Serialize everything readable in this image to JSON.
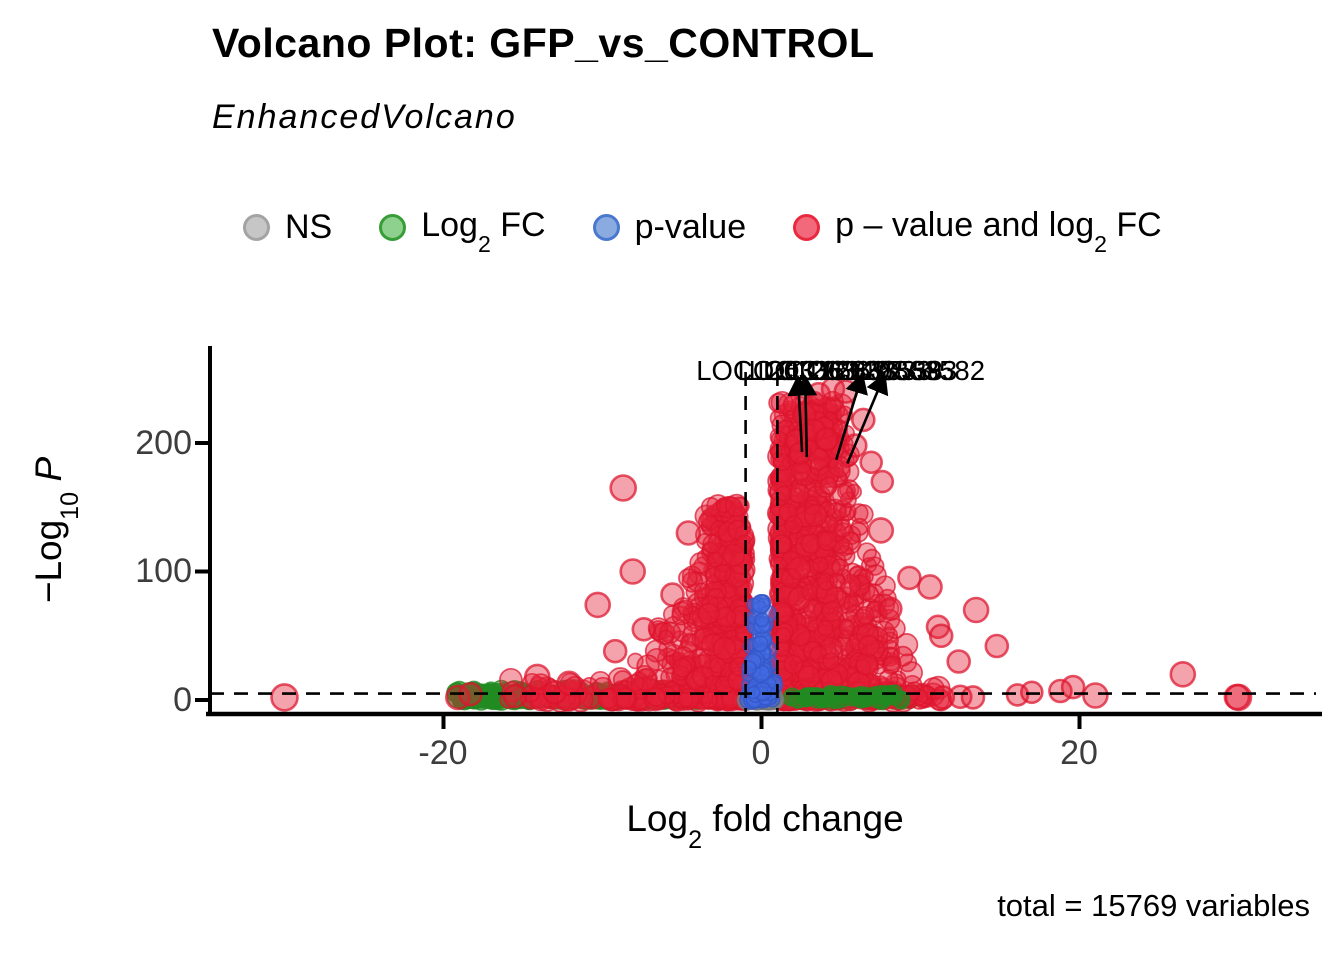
{
  "title": "Volcano Plot: GFP_vs_CONTROL",
  "subtitle": "EnhancedVolcano",
  "caption": "total = 15769 variables",
  "legend": {
    "ns": {
      "label": "NS",
      "fill": "#c6c6c6",
      "stroke": "#a3a3a3"
    },
    "fc": {
      "pre": "Log",
      "sub": "2",
      "post": " FC",
      "fill": "#8ed08e",
      "stroke": "#379d37"
    },
    "p": {
      "label": "p-value",
      "fill": "#8aabdf",
      "stroke": "#4a77cf"
    },
    "both": {
      "pre": "p – value and log",
      "sub": "2",
      "post": " FC",
      "fill": "#f2697c",
      "stroke": "#e8293f"
    }
  },
  "axes": {
    "x": {
      "title_pre": "Log",
      "title_sub": "2",
      "title_post": " fold change",
      "ticks": [
        -20,
        0,
        20
      ],
      "tick_labels": [
        "-20",
        "0",
        "20"
      ],
      "range": [
        -35,
        35
      ]
    },
    "y": {
      "title_pre": "−Log",
      "title_sub": "10",
      "title_post_italic": "P",
      "ticks": [
        0,
        100,
        200
      ],
      "tick_labels": [
        "0",
        "100",
        "200"
      ],
      "range": [
        0,
        274
      ]
    }
  },
  "chart_data": {
    "type": "scatter",
    "title": "Volcano Plot: GFP_vs_CONTROL",
    "subtitle": "EnhancedVolcano",
    "caption": "total = 15769 variables",
    "xlabel": "Log2 fold change",
    "ylabel": "-Log10 P",
    "xlim": [
      -35,
      35
    ],
    "ylim": [
      0,
      274
    ],
    "grid": false,
    "legend_position": "top",
    "total_variables": 15769,
    "cutoff_lines": {
      "x": [
        -1,
        1
      ],
      "y": 5,
      "style": "dashed",
      "color": "#000000"
    },
    "categories": [
      {
        "key": "grey",
        "name": "NS",
        "fill": "rgba(150,150,150,0.55)",
        "stroke": "rgba(118,118,118,0.85)"
      },
      {
        "key": "green",
        "name": "Log2 FC",
        "fill": "rgba(34,139,34,0.45)",
        "stroke": "rgba(34,139,34,0.8)"
      },
      {
        "key": "blue",
        "name": "p-value",
        "fill": "rgba(65,105,225,0.5)",
        "stroke": "rgba(52,88,200,0.8)"
      },
      {
        "key": "red",
        "name": "p-value and log2 FC",
        "fill": "rgba(229,33,58,0.42)",
        "stroke": "rgba(220,20,45,0.72)"
      }
    ],
    "clusters": [
      {
        "name": "green-left-band",
        "category": "green",
        "n": 430,
        "gen": "band",
        "x": [
          -19.2,
          -1.3
        ],
        "ymax": 8,
        "r": [
          7,
          10
        ]
      },
      {
        "name": "green-right-band",
        "category": "green",
        "n": 120,
        "gen": "band",
        "x": [
          1.2,
          9.4
        ],
        "ymax": 6,
        "r": [
          7,
          10
        ]
      },
      {
        "name": "red-low-left",
        "category": "red",
        "n": 95,
        "gen": "band",
        "x": [
          -16,
          -1.3
        ],
        "ymax": 16,
        "r": [
          8,
          12
        ]
      },
      {
        "name": "red-low-right",
        "category": "red",
        "n": 65,
        "gen": "band",
        "x": [
          1.3,
          11.5
        ],
        "ymax": 12,
        "r": [
          8,
          12
        ]
      },
      {
        "name": "red-left-peak",
        "category": "red",
        "n": 680,
        "gen": "peak",
        "cx": -2.2,
        "limit": -1.05,
        "ymax": 152,
        "basew": 8.5,
        "topw": 1.2,
        "ypow": 2.3,
        "r": [
          7,
          11
        ]
      },
      {
        "name": "red-right-peak",
        "category": "red",
        "n": 1050,
        "gen": "peak",
        "cx": 3.0,
        "limit": 1.05,
        "ymax": 232,
        "basew": 8.0,
        "topw": 2.6,
        "ypow": 1.75,
        "r": [
          7,
          11
        ]
      },
      {
        "name": "green-right-overlay",
        "category": "green",
        "n": 55,
        "gen": "band",
        "x": [
          1.6,
          8.8
        ],
        "ymax": 5,
        "r": [
          7,
          9
        ]
      },
      {
        "name": "grey-ns-blob",
        "category": "grey",
        "n": 260,
        "gen": "blob",
        "halfw": 0.95,
        "ymax": 4.5,
        "r": [
          7,
          10
        ]
      },
      {
        "name": "blue-center-flame",
        "category": "blue",
        "n": 100,
        "gen": "flame",
        "halfw": 0.95,
        "ymax": 78,
        "r": [
          6,
          9
        ]
      }
    ],
    "notable_points": [
      [
        -30,
        2,
        13
      ],
      [
        -19.1,
        2,
        11.5
      ],
      [
        -18.3,
        4.5,
        11
      ],
      [
        -15.5,
        3,
        11
      ],
      [
        -14.1,
        18,
        12
      ],
      [
        -13,
        6,
        11
      ],
      [
        -12.1,
        13,
        11.5
      ],
      [
        -10.3,
        74,
        12
      ],
      [
        -9.2,
        38,
        11
      ],
      [
        -8.7,
        165,
        12.5
      ],
      [
        -8.1,
        100,
        12
      ],
      [
        -7.4,
        55,
        11
      ],
      [
        -5.6,
        82,
        11
      ],
      [
        -4.6,
        130,
        11.5
      ],
      [
        2.2,
        202,
        11
      ],
      [
        2.4,
        192,
        10.5
      ],
      [
        2.7,
        222,
        11
      ],
      [
        3.3,
        210,
        11
      ],
      [
        3.6,
        238,
        11
      ],
      [
        4.1,
        203,
        11
      ],
      [
        4.5,
        242,
        11
      ],
      [
        5.1,
        160,
        10.5
      ],
      [
        5.3,
        240,
        11
      ],
      [
        5.9,
        198,
        11
      ],
      [
        6.4,
        218,
        11
      ],
      [
        6.9,
        185,
        10.5
      ],
      [
        7.6,
        170,
        10.5
      ],
      [
        7.5,
        132,
        12
      ],
      [
        8.1,
        71,
        11
      ],
      [
        9.3,
        95,
        11
      ],
      [
        10.6,
        88,
        11.5
      ],
      [
        11.1,
        57,
        11
      ],
      [
        11.3,
        50,
        11
      ],
      [
        12.4,
        30,
        11
      ],
      [
        13.5,
        70,
        12
      ],
      [
        14.8,
        42,
        11
      ],
      [
        11.4,
        2,
        11
      ],
      [
        12.5,
        2.5,
        11
      ],
      [
        13.3,
        2,
        11
      ],
      [
        16.1,
        4,
        10.5
      ],
      [
        17,
        6,
        10.5
      ],
      [
        18.8,
        7,
        11
      ],
      [
        19.6,
        10,
        11
      ],
      [
        21,
        3.5,
        12
      ],
      [
        26.5,
        20,
        12
      ],
      [
        30,
        2,
        12.5
      ],
      [
        29.9,
        2.3,
        12
      ]
    ],
    "connector_labels": [
      {
        "text": "LOC126336349",
        "x": 2.0,
        "y": 256
      },
      {
        "text": "LOC126863533",
        "x": 4.6,
        "y": 256
      },
      {
        "text": "LOC126338558",
        "x": 5.3,
        "y": 256
      },
      {
        "text": "LOC126335393",
        "x": 6.2,
        "y": 256
      },
      {
        "text": "LOC126863582",
        "x": 7.95,
        "y": 256
      }
    ],
    "connectors": [
      {
        "from": [
          2.55,
          193
        ],
        "to": [
          2.3,
          250
        ]
      },
      {
        "from": [
          2.85,
          189
        ],
        "to": [
          2.75,
          250
        ]
      },
      {
        "from": [
          4.7,
          187
        ],
        "to": [
          6.3,
          252
        ]
      },
      {
        "from": [
          5.4,
          184
        ],
        "to": [
          7.7,
          252
        ]
      }
    ]
  }
}
